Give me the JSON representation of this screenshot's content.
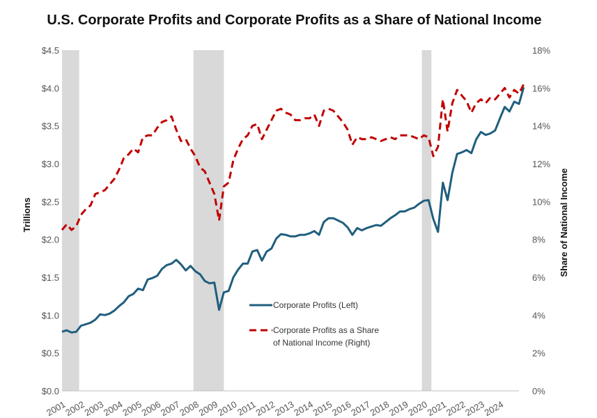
{
  "chart_data": {
    "type": "line",
    "title": "U.S. Corporate Profits and Corporate Profits as a Share of National Income",
    "xlabel": "",
    "ylabel_left": "Trillions",
    "ylabel_right": "Share of National Income",
    "xlim": [
      2001,
      2025
    ],
    "ylim_left": [
      0,
      4.5
    ],
    "ylim_right": [
      0,
      18
    ],
    "left_ticks": [
      {
        "value": 0.0,
        "label": "$0.0"
      },
      {
        "value": 0.5,
        "label": "$0.5"
      },
      {
        "value": 1.0,
        "label": "$1.0"
      },
      {
        "value": 1.5,
        "label": "$1.5"
      },
      {
        "value": 2.0,
        "label": "$2.0"
      },
      {
        "value": 2.5,
        "label": "$2.5"
      },
      {
        "value": 3.0,
        "label": "$3.0"
      },
      {
        "value": 3.5,
        "label": "$3.5"
      },
      {
        "value": 4.0,
        "label": "$4.0"
      },
      {
        "value": 4.5,
        "label": "$4.5"
      }
    ],
    "right_ticks": [
      {
        "value": 0,
        "label": "0%"
      },
      {
        "value": 2,
        "label": "2%"
      },
      {
        "value": 4,
        "label": "4%"
      },
      {
        "value": 6,
        "label": "6%"
      },
      {
        "value": 8,
        "label": "8%"
      },
      {
        "value": 10,
        "label": "10%"
      },
      {
        "value": 12,
        "label": "12%"
      },
      {
        "value": 14,
        "label": "14%"
      },
      {
        "value": 16,
        "label": "16%"
      },
      {
        "value": 18,
        "label": "18%"
      }
    ],
    "x_ticks": [
      "2001",
      "2002",
      "2003",
      "2004",
      "2005",
      "2006",
      "2007",
      "2008",
      "2009",
      "2010",
      "2011",
      "2012",
      "2013",
      "2014",
      "2015",
      "2016",
      "2017",
      "2018",
      "2019",
      "2020",
      "2021",
      "2022",
      "2023",
      "2024"
    ],
    "recessions": [
      {
        "start": 2001.0,
        "end": 2001.9
      },
      {
        "start": 2007.9,
        "end": 2009.5
      },
      {
        "start": 2019.9,
        "end": 2020.4
      }
    ],
    "series": [
      {
        "name": "Corporate Profits (Left)",
        "axis": "left",
        "color": "#1f5e7d",
        "style": "solid",
        "points": [
          [
            2001.0,
            0.78
          ],
          [
            2001.25,
            0.8
          ],
          [
            2001.5,
            0.77
          ],
          [
            2001.75,
            0.78
          ],
          [
            2002.0,
            0.86
          ],
          [
            2002.25,
            0.88
          ],
          [
            2002.5,
            0.9
          ],
          [
            2002.75,
            0.94
          ],
          [
            2003.0,
            1.01
          ],
          [
            2003.25,
            1.0
          ],
          [
            2003.5,
            1.02
          ],
          [
            2003.75,
            1.06
          ],
          [
            2004.0,
            1.12
          ],
          [
            2004.25,
            1.17
          ],
          [
            2004.5,
            1.25
          ],
          [
            2004.75,
            1.28
          ],
          [
            2005.0,
            1.35
          ],
          [
            2005.25,
            1.33
          ],
          [
            2005.5,
            1.47
          ],
          [
            2005.75,
            1.49
          ],
          [
            2006.0,
            1.52
          ],
          [
            2006.25,
            1.61
          ],
          [
            2006.5,
            1.66
          ],
          [
            2006.75,
            1.68
          ],
          [
            2007.0,
            1.73
          ],
          [
            2007.25,
            1.67
          ],
          [
            2007.5,
            1.59
          ],
          [
            2007.75,
            1.65
          ],
          [
            2008.0,
            1.58
          ],
          [
            2008.25,
            1.54
          ],
          [
            2008.5,
            1.45
          ],
          [
            2008.75,
            1.42
          ],
          [
            2009.0,
            1.43
          ],
          [
            2009.25,
            1.07
          ],
          [
            2009.5,
            1.3
          ],
          [
            2009.75,
            1.32
          ],
          [
            2010.0,
            1.5
          ],
          [
            2010.25,
            1.6
          ],
          [
            2010.5,
            1.68
          ],
          [
            2010.75,
            1.68
          ],
          [
            2011.0,
            1.84
          ],
          [
            2011.25,
            1.86
          ],
          [
            2011.5,
            1.72
          ],
          [
            2011.75,
            1.84
          ],
          [
            2012.0,
            1.88
          ],
          [
            2012.25,
            2.01
          ],
          [
            2012.5,
            2.07
          ],
          [
            2012.75,
            2.06
          ],
          [
            2013.0,
            2.04
          ],
          [
            2013.25,
            2.04
          ],
          [
            2013.5,
            2.06
          ],
          [
            2013.75,
            2.06
          ],
          [
            2014.0,
            2.08
          ],
          [
            2014.25,
            2.11
          ],
          [
            2014.5,
            2.06
          ],
          [
            2014.75,
            2.23
          ],
          [
            2015.0,
            2.28
          ],
          [
            2015.25,
            2.28
          ],
          [
            2015.5,
            2.25
          ],
          [
            2015.75,
            2.22
          ],
          [
            2016.0,
            2.16
          ],
          [
            2016.25,
            2.06
          ],
          [
            2016.5,
            2.15
          ],
          [
            2016.75,
            2.12
          ],
          [
            2017.0,
            2.15
          ],
          [
            2017.25,
            2.17
          ],
          [
            2017.5,
            2.19
          ],
          [
            2017.75,
            2.18
          ],
          [
            2018.0,
            2.23
          ],
          [
            2018.25,
            2.28
          ],
          [
            2018.5,
            2.32
          ],
          [
            2018.75,
            2.37
          ],
          [
            2019.0,
            2.37
          ],
          [
            2019.25,
            2.4
          ],
          [
            2019.5,
            2.42
          ],
          [
            2019.75,
            2.47
          ],
          [
            2020.0,
            2.51
          ],
          [
            2020.25,
            2.52
          ],
          [
            2020.5,
            2.27
          ],
          [
            2020.75,
            2.1
          ],
          [
            2021.0,
            2.75
          ],
          [
            2021.25,
            2.52
          ],
          [
            2021.5,
            2.88
          ],
          [
            2021.75,
            3.13
          ],
          [
            2022.0,
            3.15
          ],
          [
            2022.25,
            3.18
          ],
          [
            2022.5,
            3.14
          ],
          [
            2022.75,
            3.32
          ],
          [
            2023.0,
            3.42
          ],
          [
            2023.25,
            3.38
          ],
          [
            2023.5,
            3.4
          ],
          [
            2023.75,
            3.44
          ],
          [
            2024.0,
            3.6
          ],
          [
            2024.25,
            3.75
          ],
          [
            2024.5,
            3.69
          ],
          [
            2024.75,
            3.82
          ],
          [
            2025.0,
            3.79
          ],
          [
            2025.25,
            4.01
          ]
        ]
      },
      {
        "name": "Corporate Profits as a Share of National Income (Right)",
        "axis": "right",
        "color": "#c00000",
        "style": "dashed",
        "points": [
          [
            2001.0,
            8.5
          ],
          [
            2001.25,
            8.8
          ],
          [
            2001.5,
            8.5
          ],
          [
            2001.75,
            8.7
          ],
          [
            2002.0,
            9.3
          ],
          [
            2002.25,
            9.6
          ],
          [
            2002.5,
            9.8
          ],
          [
            2002.75,
            10.4
          ],
          [
            2003.0,
            10.5
          ],
          [
            2003.25,
            10.6
          ],
          [
            2003.5,
            10.9
          ],
          [
            2003.75,
            11.2
          ],
          [
            2004.0,
            11.7
          ],
          [
            2004.25,
            12.3
          ],
          [
            2004.5,
            12.5
          ],
          [
            2004.75,
            12.8
          ],
          [
            2005.0,
            12.6
          ],
          [
            2005.25,
            13.4
          ],
          [
            2005.5,
            13.5
          ],
          [
            2005.75,
            13.5
          ],
          [
            2006.0,
            13.9
          ],
          [
            2006.25,
            14.2
          ],
          [
            2006.5,
            14.3
          ],
          [
            2006.75,
            14.5
          ],
          [
            2007.0,
            13.8
          ],
          [
            2007.25,
            13.2
          ],
          [
            2007.5,
            13.3
          ],
          [
            2007.75,
            12.8
          ],
          [
            2008.0,
            12.4
          ],
          [
            2008.25,
            11.8
          ],
          [
            2008.5,
            11.6
          ],
          [
            2008.75,
            11.0
          ],
          [
            2009.0,
            10.4
          ],
          [
            2009.25,
            9.0
          ],
          [
            2009.5,
            10.8
          ],
          [
            2009.75,
            11.0
          ],
          [
            2010.0,
            12.2
          ],
          [
            2010.25,
            12.8
          ],
          [
            2010.5,
            13.3
          ],
          [
            2010.75,
            13.5
          ],
          [
            2011.0,
            14.0
          ],
          [
            2011.25,
            14.1
          ],
          [
            2011.5,
            13.3
          ],
          [
            2011.75,
            13.8
          ],
          [
            2012.0,
            14.3
          ],
          [
            2012.25,
            14.8
          ],
          [
            2012.5,
            14.9
          ],
          [
            2012.75,
            14.7
          ],
          [
            2013.0,
            14.6
          ],
          [
            2013.25,
            14.3
          ],
          [
            2013.5,
            14.3
          ],
          [
            2013.75,
            14.4
          ],
          [
            2014.0,
            14.4
          ],
          [
            2014.25,
            14.6
          ],
          [
            2014.5,
            14.0
          ],
          [
            2014.75,
            14.8
          ],
          [
            2015.0,
            14.9
          ],
          [
            2015.25,
            14.8
          ],
          [
            2015.5,
            14.5
          ],
          [
            2015.75,
            14.2
          ],
          [
            2016.0,
            13.8
          ],
          [
            2016.25,
            13.0
          ],
          [
            2016.5,
            13.4
          ],
          [
            2016.75,
            13.3
          ],
          [
            2017.0,
            13.3
          ],
          [
            2017.25,
            13.4
          ],
          [
            2017.5,
            13.3
          ],
          [
            2017.75,
            13.2
          ],
          [
            2018.0,
            13.3
          ],
          [
            2018.25,
            13.4
          ],
          [
            2018.5,
            13.3
          ],
          [
            2018.75,
            13.5
          ],
          [
            2019.0,
            13.5
          ],
          [
            2019.25,
            13.5
          ],
          [
            2019.5,
            13.4
          ],
          [
            2019.75,
            13.3
          ],
          [
            2020.0,
            13.5
          ],
          [
            2020.25,
            13.4
          ],
          [
            2020.5,
            12.4
          ],
          [
            2020.75,
            12.9
          ],
          [
            2021.0,
            15.4
          ],
          [
            2021.25,
            13.7
          ],
          [
            2021.5,
            15.2
          ],
          [
            2021.75,
            15.9
          ],
          [
            2022.0,
            15.6
          ],
          [
            2022.25,
            15.3
          ],
          [
            2022.5,
            14.7
          ],
          [
            2022.75,
            15.2
          ],
          [
            2023.0,
            15.4
          ],
          [
            2023.25,
            15.2
          ],
          [
            2023.5,
            15.5
          ],
          [
            2023.75,
            15.4
          ],
          [
            2024.0,
            15.7
          ],
          [
            2024.25,
            16.0
          ],
          [
            2024.5,
            15.5
          ],
          [
            2024.75,
            15.9
          ],
          [
            2025.0,
            15.7
          ],
          [
            2025.25,
            16.2
          ]
        ]
      }
    ]
  }
}
